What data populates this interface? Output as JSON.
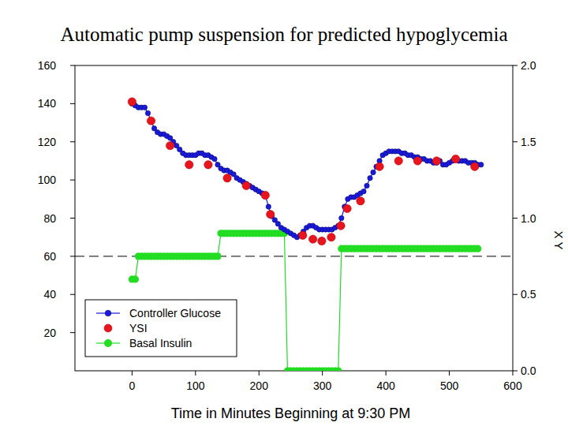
{
  "chart_data": {
    "type": "scatter",
    "title": "Automatic pump suspension for predicted hypoglycemia",
    "x_label": "Time in Minutes Beginning at 9:30 PM",
    "y2_label": "X Y",
    "xlim": [
      -90,
      600
    ],
    "xticks": [
      0,
      100,
      200,
      300,
      400,
      500,
      600
    ],
    "ylim": [
      0,
      160
    ],
    "yticks": [
      20,
      40,
      60,
      80,
      100,
      120,
      140,
      160
    ],
    "y2lim": [
      0,
      2
    ],
    "y2ticks": [
      {
        "value": 0,
        "label": "0.0"
      },
      {
        "value": 0.5,
        "label": "0.5"
      },
      {
        "value": 1,
        "label": "1.0"
      },
      {
        "value": 1.5,
        "label": "1.5"
      },
      {
        "value": 2,
        "label": "2.0"
      }
    ],
    "grid": false,
    "legend": "lower left",
    "reference_lines": [
      {
        "value": 60,
        "line_style": "dashed"
      }
    ],
    "series": [
      {
        "name": "Controller Glucose",
        "color": "#1a1adc",
        "marker": "circle",
        "line_style": "solid",
        "x": [
          0,
          5,
          10,
          15,
          20,
          25,
          30,
          35,
          40,
          45,
          50,
          55,
          60,
          65,
          70,
          75,
          80,
          85,
          90,
          95,
          100,
          105,
          110,
          115,
          120,
          125,
          130,
          135,
          140,
          145,
          150,
          155,
          160,
          165,
          170,
          175,
          180,
          185,
          190,
          195,
          200,
          205,
          210,
          215,
          220,
          225,
          230,
          235,
          240,
          245,
          250,
          255,
          260,
          265,
          270,
          275,
          280,
          285,
          290,
          295,
          300,
          305,
          310,
          315,
          320,
          325,
          330,
          335,
          340,
          345,
          350,
          355,
          360,
          365,
          370,
          375,
          380,
          385,
          390,
          395,
          400,
          405,
          410,
          415,
          420,
          425,
          430,
          435,
          440,
          445,
          450,
          455,
          460,
          465,
          470,
          475,
          480,
          485,
          490,
          495,
          500,
          505,
          510,
          515,
          520,
          525,
          530,
          535,
          540,
          545,
          550
        ],
        "values": [
          140,
          139,
          138,
          138,
          138,
          135,
          131,
          127,
          125,
          124,
          124,
          123,
          122,
          120,
          118,
          116,
          114,
          113,
          113,
          113,
          113,
          114,
          114,
          113,
          113,
          112,
          111,
          108,
          106,
          105,
          105,
          104,
          103,
          101,
          100,
          99,
          98,
          97,
          96,
          95,
          94,
          93,
          92,
          86,
          81,
          79,
          77,
          75,
          74,
          73,
          72,
          71,
          70,
          71,
          73,
          75,
          76,
          76,
          75,
          74,
          74,
          74,
          74,
          74,
          75,
          76,
          80,
          86,
          90,
          91,
          91,
          92,
          93,
          94,
          97,
          101,
          104,
          107,
          110,
          113,
          114,
          115,
          115,
          115,
          115,
          114,
          114,
          113,
          113,
          112,
          112,
          111,
          111,
          110,
          110,
          109,
          109,
          110,
          108,
          108,
          109,
          110,
          111,
          110,
          110,
          110,
          109,
          109,
          109,
          108,
          108
        ]
      },
      {
        "name": "YSI",
        "color": "#e8141e",
        "marker": "circle",
        "line_style": "none",
        "x": [
          0,
          30,
          60,
          90,
          120,
          150,
          180,
          210,
          218,
          269,
          285,
          299,
          314,
          329,
          339,
          360,
          390,
          420,
          450,
          480,
          510,
          540
        ],
        "values": [
          141,
          131,
          118,
          108,
          108,
          101,
          97,
          92,
          82,
          71,
          69,
          68,
          70,
          76,
          85,
          89,
          107,
          110,
          110,
          110,
          111,
          107
        ]
      },
      {
        "name": "Basal Insulin",
        "color": "#22dd22",
        "marker": "circle",
        "line_style": "solid",
        "axis": "y2",
        "x": [
          0,
          5,
          10,
          15,
          20,
          25,
          30,
          35,
          40,
          45,
          50,
          55,
          60,
          65,
          70,
          75,
          80,
          85,
          90,
          95,
          100,
          105,
          110,
          115,
          120,
          125,
          130,
          135,
          140,
          145,
          150,
          155,
          160,
          165,
          170,
          175,
          180,
          185,
          190,
          195,
          200,
          205,
          210,
          215,
          220,
          225,
          230,
          235,
          240,
          245,
          250,
          255,
          260,
          265,
          270,
          275,
          280,
          285,
          290,
          295,
          300,
          305,
          310,
          315,
          320,
          325,
          330,
          335,
          340,
          345,
          350,
          355,
          360,
          365,
          370,
          375,
          380,
          385,
          390,
          395,
          400,
          405,
          410,
          415,
          420,
          425,
          430,
          435,
          440,
          445,
          450,
          455,
          460,
          465,
          470,
          475,
          480,
          485,
          490,
          495,
          500,
          505,
          510,
          515,
          520,
          525,
          530,
          535,
          540,
          545
        ],
        "values": [
          0.6,
          0.6,
          0.75,
          0.75,
          0.75,
          0.75,
          0.75,
          0.75,
          0.75,
          0.75,
          0.75,
          0.75,
          0.75,
          0.75,
          0.75,
          0.75,
          0.75,
          0.75,
          0.75,
          0.75,
          0.75,
          0.75,
          0.75,
          0.75,
          0.75,
          0.75,
          0.75,
          0.75,
          0.9,
          0.9,
          0.9,
          0.9,
          0.9,
          0.9,
          0.9,
          0.9,
          0.9,
          0.9,
          0.9,
          0.9,
          0.9,
          0.9,
          0.9,
          0.9,
          0.9,
          0.9,
          0.9,
          0.9,
          0.9,
          0,
          0,
          0,
          0,
          0,
          0,
          0,
          0,
          0,
          0,
          0,
          0,
          0,
          0,
          0,
          0,
          0,
          0.8,
          0.8,
          0.8,
          0.8,
          0.8,
          0.8,
          0.8,
          0.8,
          0.8,
          0.8,
          0.8,
          0.8,
          0.8,
          0.8,
          0.8,
          0.8,
          0.8,
          0.8,
          0.8,
          0.8,
          0.8,
          0.8,
          0.8,
          0.8,
          0.8,
          0.8,
          0.8,
          0.8,
          0.8,
          0.8,
          0.8,
          0.8,
          0.8,
          0.8,
          0.8,
          0.8,
          0.8,
          0.8,
          0.8,
          0.8,
          0.8,
          0.8,
          0.8,
          0.8
        ]
      }
    ]
  }
}
